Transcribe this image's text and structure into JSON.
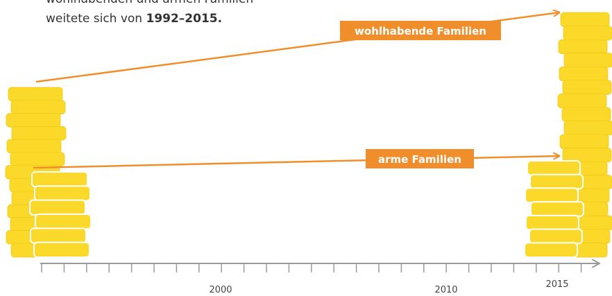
{
  "intro": {
    "line1": "wohlhabenden und armen Familien",
    "line2": "weitete sich von ",
    "line2_bold": "1992–2015."
  },
  "labels": {
    "rich": "wohlhabende Familien",
    "poor": "arme Familien"
  },
  "axis": {
    "labels": [
      "2000",
      "2010",
      "2015"
    ]
  }
}
